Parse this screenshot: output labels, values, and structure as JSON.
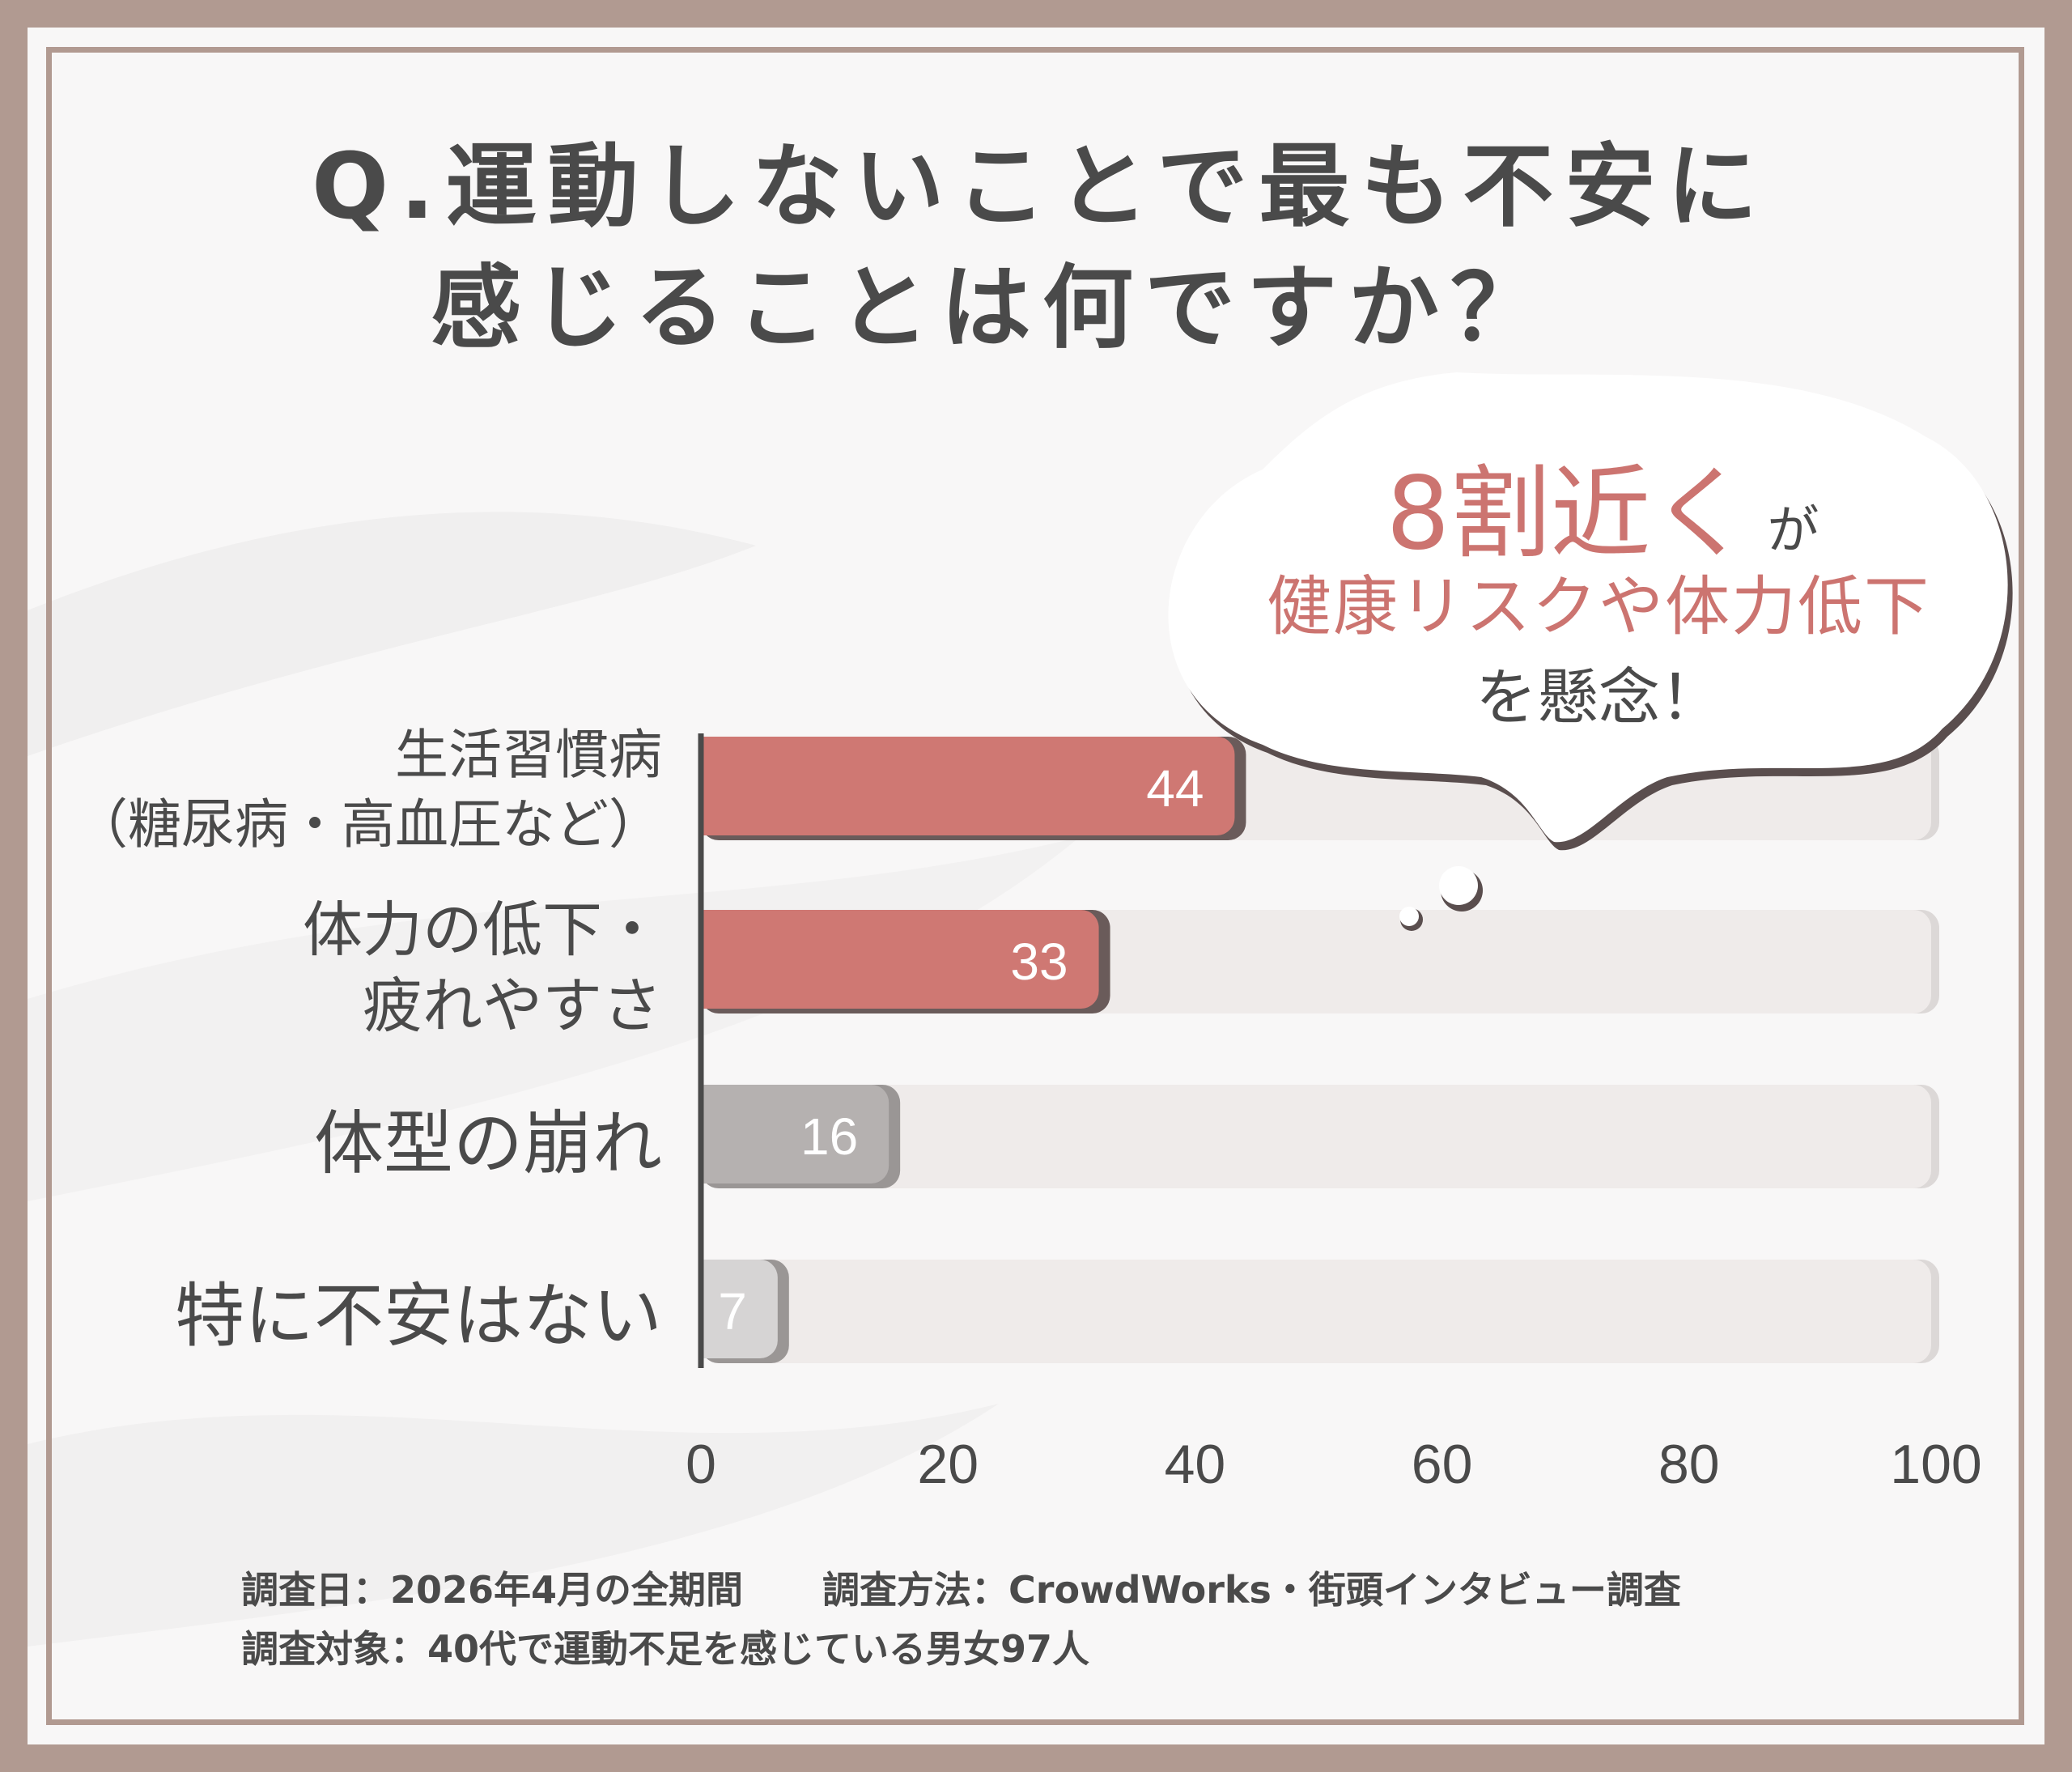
{
  "title": {
    "line1": "Q.運動しないことで最も不安に",
    "line2": "感じることは何ですか？"
  },
  "callout": {
    "highlight": "8割近く",
    "particle": "が",
    "line2": "健康リスクや体力低下",
    "line3": "を懸念！"
  },
  "chart_data": {
    "type": "bar",
    "orientation": "horizontal",
    "categories": [
      "生活習慣病\n（糖尿病・高血圧など）",
      "体力の低下・\n疲れやすさ",
      "体型の崩れ",
      "特に不安はない"
    ],
    "values": [
      44,
      33,
      16,
      7
    ],
    "xlim": [
      0,
      100
    ],
    "xticks": [
      "0",
      "20",
      "40",
      "60",
      "80",
      "100"
    ],
    "grid": false,
    "colors": {
      "highlight": "#cf7873",
      "gray": "#b5b1b0",
      "lightgray": "#d6d4d4",
      "track": "#efebea",
      "axis": "#4a4a4a"
    }
  },
  "footer": {
    "date": "調査日：2026年4月の全期間",
    "method": "調査方法：CrowdWorks・街頭インタビュー調査",
    "target": "調査対象：40代で運動不足を感じている男女97人"
  }
}
